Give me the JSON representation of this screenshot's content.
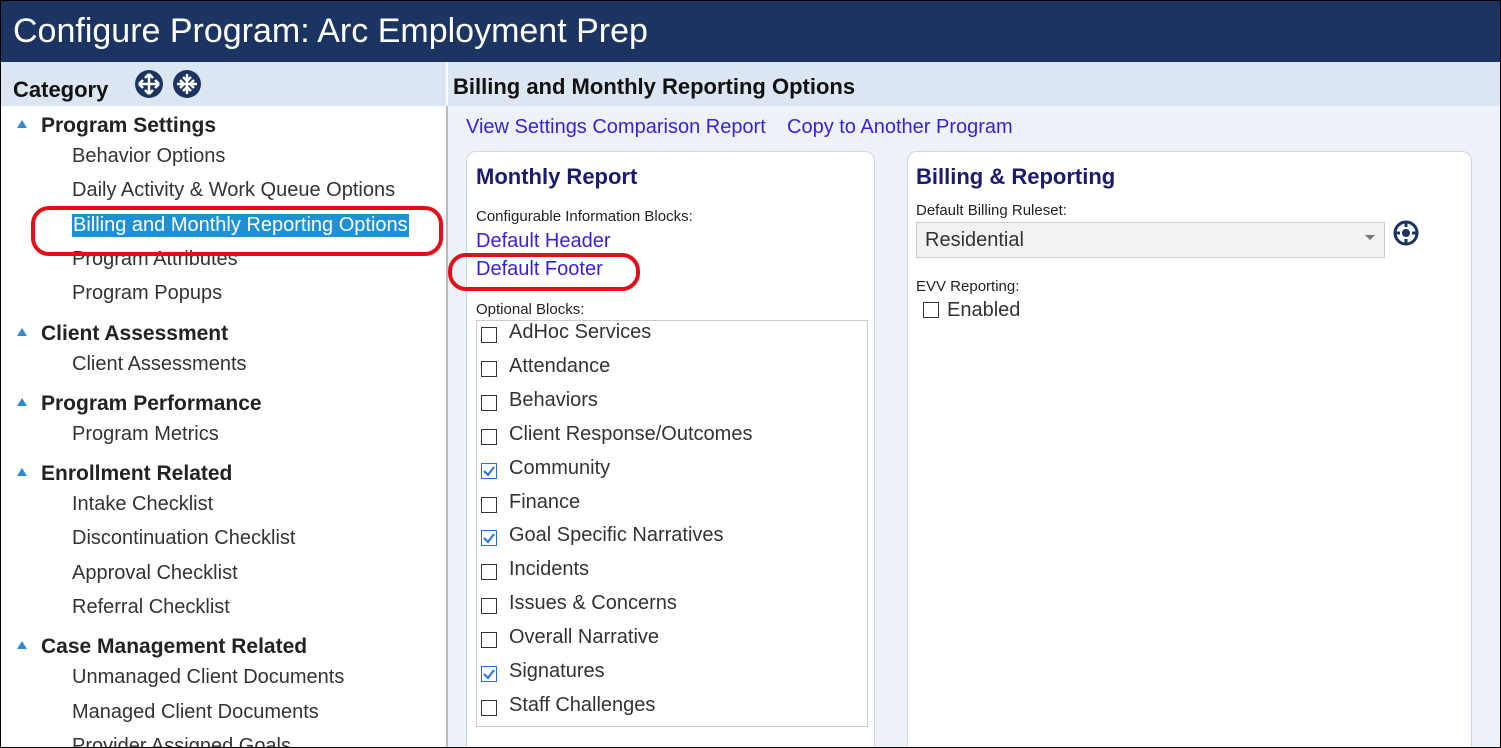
{
  "header": {
    "title": "Configure Program: Arc Employment Prep"
  },
  "sidebar": {
    "title": "Category",
    "groups": [
      {
        "label": "Program Settings",
        "items": [
          {
            "label": "Behavior Options"
          },
          {
            "label": "Daily Activity & Work Queue Options"
          },
          {
            "label": "Billing and Monthly Reporting Options",
            "selected": true
          },
          {
            "label": "Program Attributes"
          },
          {
            "label": "Program Popups"
          }
        ]
      },
      {
        "label": "Client Assessment",
        "items": [
          {
            "label": "Client Assessments"
          }
        ]
      },
      {
        "label": "Program Performance",
        "items": [
          {
            "label": "Program Metrics"
          }
        ]
      },
      {
        "label": "Enrollment Related",
        "items": [
          {
            "label": "Intake Checklist"
          },
          {
            "label": "Discontinuation Checklist"
          },
          {
            "label": "Approval Checklist"
          },
          {
            "label": "Referral Checklist"
          }
        ]
      },
      {
        "label": "Case Management Related",
        "items": [
          {
            "label": "Unmanaged Client Documents"
          },
          {
            "label": "Managed Client Documents"
          },
          {
            "label": "Provider Assigned Goals"
          }
        ]
      }
    ]
  },
  "main": {
    "title": "Billing and Monthly Reporting Options",
    "links": [
      "View Settings Comparison Report",
      "Copy to Another Program"
    ],
    "monthly_report": {
      "title": "Monthly Report",
      "blocks_label": "Configurable Information Blocks:",
      "blocks": [
        "Default Header",
        "Default Footer"
      ],
      "optional_label": "Optional Blocks:",
      "optional": [
        {
          "label": "AdHoc Services",
          "checked": false
        },
        {
          "label": "Attendance",
          "checked": false
        },
        {
          "label": "Behaviors",
          "checked": false
        },
        {
          "label": "Client Response/Outcomes",
          "checked": false
        },
        {
          "label": "Community",
          "checked": true
        },
        {
          "label": "Finance",
          "checked": false
        },
        {
          "label": "Goal Specific Narratives",
          "checked": true
        },
        {
          "label": "Incidents",
          "checked": false
        },
        {
          "label": "Issues & Concerns",
          "checked": false
        },
        {
          "label": "Overall Narrative",
          "checked": false
        },
        {
          "label": "Signatures",
          "checked": true
        },
        {
          "label": "Staff Challenges",
          "checked": false
        }
      ]
    },
    "billing": {
      "title": "Billing & Reporting",
      "ruleset_label": "Default Billing Ruleset:",
      "ruleset": "Residential",
      "evv_label": "EVV Reporting:",
      "evv_option": "Enabled",
      "evv_checked": false
    }
  }
}
